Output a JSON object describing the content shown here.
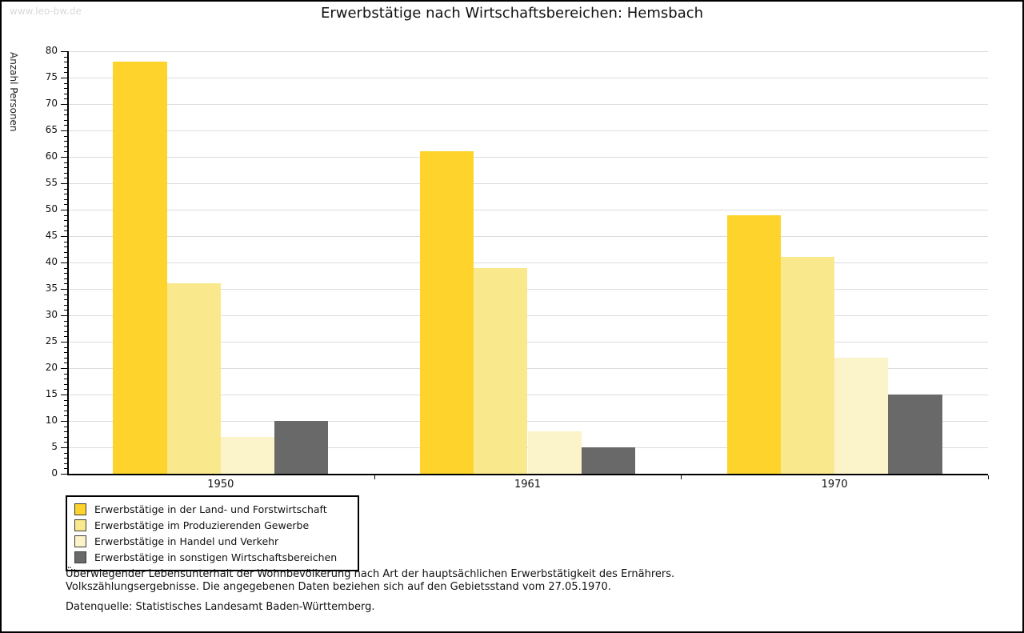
{
  "watermark": "www.leo-bw.de",
  "title": "Erwerbstätige nach Wirtschaftsbereichen: Hemsbach",
  "chart_data": {
    "type": "bar",
    "title": "Erwerbstätige nach Wirtschaftsbereichen: Hemsbach",
    "xlabel": "",
    "ylabel": "Anzahl Personen",
    "categories": [
      "1950",
      "1961",
      "1970"
    ],
    "series": [
      {
        "name": "Erwerbstätige in der Land- und Forstwirtschaft",
        "color": "#fdd32c",
        "values": [
          78,
          61,
          49
        ]
      },
      {
        "name": "Erwerbstätige im Produzierenden Gewerbe",
        "color": "#fae98c",
        "values": [
          36,
          39,
          41
        ]
      },
      {
        "name": "Erwerbstätige in Handel und Verkehr",
        "color": "#fbf3c9",
        "values": [
          7,
          8,
          22
        ]
      },
      {
        "name": "Erwerbstätige in sonstigen Wirtschaftsbereichen",
        "color": "#696969",
        "values": [
          10,
          5,
          15
        ]
      }
    ],
    "ylim": [
      0,
      80
    ],
    "ytick_step": 5,
    "minor_tick_step": 1,
    "grid": "horizontal-major",
    "legend_position": "bottom-left"
  },
  "footer": {
    "line1": "Überwiegender Lebensunterhalt der Wohnbevölkerung nach Art der hauptsächlichen Erwerbstätigkeit des Ernährers.",
    "line2": "Volkszählungsergebnisse. Die angegebenen Daten beziehen sich auf den Gebietsstand vom 27.05.1970.",
    "source": "Datenquelle: Statistisches Landesamt Baden-Württemberg."
  },
  "colors": {
    "grid": "#dcdcdc",
    "axis": "#000000",
    "watermark": "#d9d9d9",
    "frame": "#000000",
    "background": "#ffffff"
  }
}
